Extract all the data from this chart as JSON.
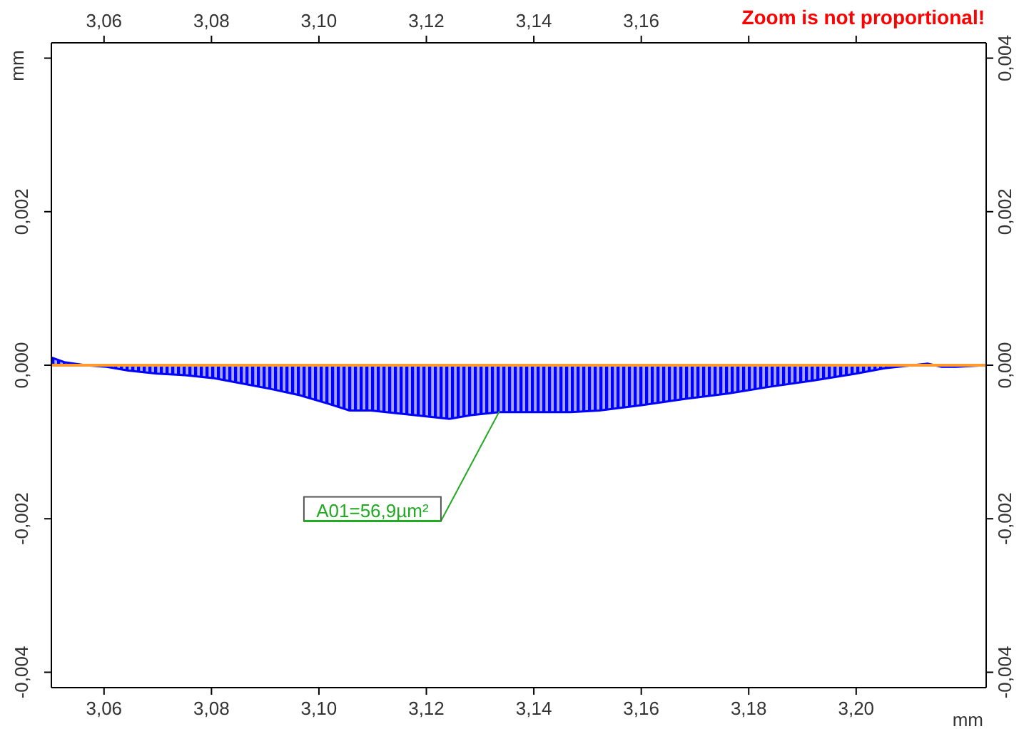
{
  "chart_data": {
    "type": "area",
    "xlabel": "mm",
    "ylabel": "mm",
    "x": [
      3.0502,
      3.0526,
      3.0565,
      3.0605,
      3.0645,
      3.0698,
      3.0751,
      3.0805,
      3.0858,
      3.0911,
      3.0964,
      3.1017,
      3.1057,
      3.1097,
      3.115,
      3.1203,
      3.1243,
      3.1283,
      3.1336,
      3.1415,
      3.1469,
      3.1522,
      3.1601,
      3.1681,
      3.1761,
      3.184,
      3.192,
      3.2,
      3.2053,
      3.2106,
      3.2133,
      3.2159,
      3.2186,
      3.2242
    ],
    "series": [
      {
        "color": "#0000ff",
        "values": [
          0.0001,
          4e-05,
          0,
          -2e-05,
          -7e-05,
          -0.00011,
          -0.00013,
          -0.00017,
          -0.00024,
          -0.00031,
          -0.00039,
          -0.0005,
          -0.00059,
          -0.00059,
          -0.00063,
          -0.00067,
          -0.0007,
          -0.00065,
          -0.00061,
          -0.00061,
          -0.00061,
          -0.00059,
          -0.00052,
          -0.00044,
          -0.00037,
          -0.00028,
          -0.0002,
          -0.00011,
          -4e-05,
          0,
          2e-05,
          -2e-05,
          -2e-05,
          0
        ]
      }
    ],
    "xlim": [
      3.0502,
      3.2242
    ],
    "xticks": [
      {
        "value": 3.06,
        "label": "3,06"
      },
      {
        "value": 3.08,
        "label": "3,08"
      },
      {
        "value": 3.1,
        "label": "3,10"
      },
      {
        "value": 3.12,
        "label": "3,12"
      },
      {
        "value": 3.14,
        "label": "3,14"
      },
      {
        "value": 3.16,
        "label": "3,16"
      },
      {
        "value": 3.18,
        "label": "3,18"
      },
      {
        "value": 3.2,
        "label": "3,20"
      }
    ],
    "x2lim": [
      3.0502,
      3.2242
    ],
    "x2ticks": [
      {
        "value": 3.06,
        "label": "3,06"
      },
      {
        "value": 3.08,
        "label": "3,08"
      },
      {
        "value": 3.1,
        "label": "3,10"
      },
      {
        "value": 3.12,
        "label": "3,12"
      },
      {
        "value": 3.14,
        "label": "3,14"
      },
      {
        "value": 3.16,
        "label": "3,16"
      },
      {
        "value": 3.18,
        "label": null
      },
      {
        "value": 3.2,
        "label": null
      }
    ],
    "ylim": [
      -0.0042,
      0.0042
    ],
    "yticks": [
      {
        "value": -0.004,
        "label": "-0,004"
      },
      {
        "value": -0.002,
        "label": "-0,002"
      },
      {
        "value": 0,
        "label": "0,000"
      },
      {
        "value": 0.002,
        "label": "0,002"
      },
      {
        "value": 0.004,
        "label": null
      }
    ],
    "y2lim": [
      -0.0042,
      0.0042
    ],
    "y2ticks": [
      {
        "value": -0.004,
        "label": "-0,004"
      },
      {
        "value": -0.002,
        "label": "-0,002"
      },
      {
        "value": 0,
        "label": "0,000"
      },
      {
        "value": 0.002,
        "label": "0,002"
      },
      {
        "value": 0.004,
        "label": "0,004"
      }
    ],
    "ref_lines": [
      {
        "axis": "y",
        "value": 0,
        "color": "#ff9933"
      }
    ],
    "annotations": [
      {
        "text": "A01=56,9µm²",
        "x": 3.1336,
        "y": -0.0006
      },
      "Zoom is not proportional!"
    ],
    "grid": false,
    "legend": false
  }
}
